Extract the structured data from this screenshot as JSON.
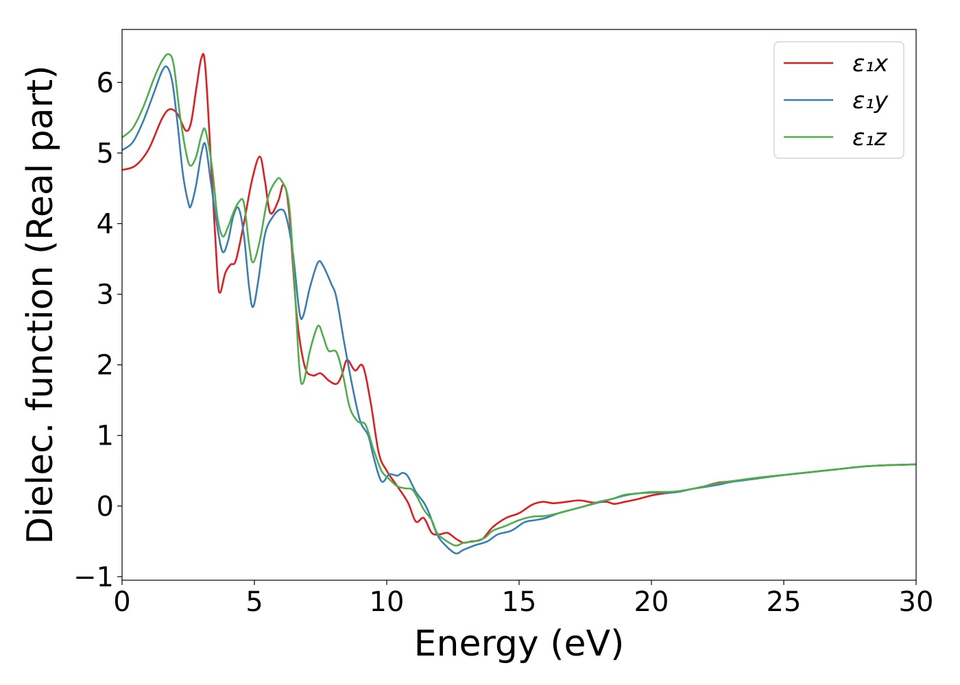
{
  "chart_data": {
    "type": "line",
    "xlabel": "Energy (eV)",
    "ylabel": "Dielec. function (Real part)",
    "xlim": [
      0,
      30
    ],
    "ylim": [
      -1.05,
      6.75
    ],
    "xticks": [
      0,
      5,
      10,
      15,
      20,
      25,
      30
    ],
    "yticks": [
      -1,
      0,
      1,
      2,
      3,
      4,
      5,
      6
    ],
    "ytick_labels": [
      "−1",
      "0",
      "1",
      "2",
      "3",
      "4",
      "5",
      "6"
    ],
    "grid": false,
    "legend_position": "top-right",
    "series": [
      {
        "name": "ε₁x",
        "color": "#e41a1c",
        "points": [
          [
            0,
            4.76
          ],
          [
            0.5,
            4.82
          ],
          [
            1.0,
            5.05
          ],
          [
            1.5,
            5.48
          ],
          [
            1.8,
            5.62
          ],
          [
            2.1,
            5.55
          ],
          [
            2.4,
            5.32
          ],
          [
            2.6,
            5.42
          ],
          [
            2.8,
            5.9
          ],
          [
            3.0,
            6.35
          ],
          [
            3.15,
            6.2
          ],
          [
            3.4,
            4.6
          ],
          [
            3.6,
            3.3
          ],
          [
            3.7,
            3.02
          ],
          [
            3.9,
            3.3
          ],
          [
            4.1,
            3.42
          ],
          [
            4.3,
            3.48
          ],
          [
            4.6,
            4.0
          ],
          [
            4.9,
            4.6
          ],
          [
            5.2,
            4.95
          ],
          [
            5.4,
            4.6
          ],
          [
            5.6,
            4.15
          ],
          [
            5.9,
            4.32
          ],
          [
            6.1,
            4.55
          ],
          [
            6.3,
            4.2
          ],
          [
            6.6,
            2.7
          ],
          [
            6.9,
            1.98
          ],
          [
            7.2,
            1.85
          ],
          [
            7.5,
            1.88
          ],
          [
            7.8,
            1.78
          ],
          [
            8.1,
            1.73
          ],
          [
            8.3,
            1.85
          ],
          [
            8.5,
            2.07
          ],
          [
            8.8,
            1.92
          ],
          [
            9.1,
            1.98
          ],
          [
            9.4,
            1.45
          ],
          [
            9.7,
            0.75
          ],
          [
            10.0,
            0.5
          ],
          [
            10.4,
            0.28
          ],
          [
            10.8,
            0.05
          ],
          [
            11.1,
            -0.22
          ],
          [
            11.4,
            -0.17
          ],
          [
            11.7,
            -0.38
          ],
          [
            12.0,
            -0.4
          ],
          [
            12.3,
            -0.38
          ],
          [
            12.6,
            -0.46
          ],
          [
            12.9,
            -0.52
          ],
          [
            13.2,
            -0.5
          ],
          [
            13.6,
            -0.47
          ],
          [
            14.0,
            -0.3
          ],
          [
            14.5,
            -0.17
          ],
          [
            15.0,
            -0.1
          ],
          [
            15.5,
            0.02
          ],
          [
            15.9,
            0.06
          ],
          [
            16.3,
            0.04
          ],
          [
            16.8,
            0.06
          ],
          [
            17.3,
            0.08
          ],
          [
            17.8,
            0.05
          ],
          [
            18.3,
            0.06
          ],
          [
            18.6,
            0.03
          ],
          [
            19.0,
            0.06
          ],
          [
            19.5,
            0.1
          ],
          [
            20.0,
            0.15
          ],
          [
            20.5,
            0.18
          ],
          [
            21.0,
            0.2
          ],
          [
            21.5,
            0.24
          ],
          [
            22.0,
            0.28
          ],
          [
            22.5,
            0.33
          ],
          [
            23.0,
            0.35
          ],
          [
            24.0,
            0.4
          ],
          [
            25.0,
            0.44
          ],
          [
            26.0,
            0.48
          ],
          [
            27.0,
            0.52
          ],
          [
            28.0,
            0.56
          ],
          [
            29.0,
            0.58
          ],
          [
            30.0,
            0.59
          ]
        ]
      },
      {
        "name": "ε₁y",
        "color": "#377eb8",
        "points": [
          [
            0,
            5.04
          ],
          [
            0.4,
            5.15
          ],
          [
            0.8,
            5.45
          ],
          [
            1.2,
            5.85
          ],
          [
            1.5,
            6.15
          ],
          [
            1.7,
            6.22
          ],
          [
            1.9,
            6.0
          ],
          [
            2.1,
            5.4
          ],
          [
            2.3,
            4.7
          ],
          [
            2.5,
            4.3
          ],
          [
            2.6,
            4.25
          ],
          [
            2.8,
            4.55
          ],
          [
            3.0,
            5.0
          ],
          [
            3.15,
            5.12
          ],
          [
            3.35,
            4.6
          ],
          [
            3.6,
            3.95
          ],
          [
            3.8,
            3.6
          ],
          [
            4.0,
            3.75
          ],
          [
            4.2,
            4.1
          ],
          [
            4.4,
            4.22
          ],
          [
            4.6,
            3.85
          ],
          [
            4.8,
            3.1
          ],
          [
            4.95,
            2.82
          ],
          [
            5.15,
            3.2
          ],
          [
            5.4,
            3.85
          ],
          [
            5.7,
            4.1
          ],
          [
            6.0,
            4.2
          ],
          [
            6.2,
            4.1
          ],
          [
            6.45,
            3.6
          ],
          [
            6.7,
            2.75
          ],
          [
            6.85,
            2.7
          ],
          [
            7.1,
            3.1
          ],
          [
            7.4,
            3.45
          ],
          [
            7.6,
            3.4
          ],
          [
            7.9,
            3.15
          ],
          [
            8.1,
            2.95
          ],
          [
            8.4,
            2.3
          ],
          [
            8.7,
            1.7
          ],
          [
            9.0,
            1.2
          ],
          [
            9.3,
            1.0
          ],
          [
            9.5,
            0.7
          ],
          [
            9.8,
            0.35
          ],
          [
            10.1,
            0.45
          ],
          [
            10.4,
            0.43
          ],
          [
            10.6,
            0.47
          ],
          [
            10.8,
            0.42
          ],
          [
            11.1,
            0.2
          ],
          [
            11.4,
            0.05
          ],
          [
            11.6,
            -0.1
          ],
          [
            11.9,
            -0.4
          ],
          [
            12.2,
            -0.55
          ],
          [
            12.6,
            -0.67
          ],
          [
            12.9,
            -0.62
          ],
          [
            13.3,
            -0.56
          ],
          [
            13.8,
            -0.5
          ],
          [
            14.2,
            -0.4
          ],
          [
            14.7,
            -0.35
          ],
          [
            15.2,
            -0.23
          ],
          [
            15.6,
            -0.2
          ],
          [
            16.0,
            -0.17
          ],
          [
            16.5,
            -0.1
          ],
          [
            17.0,
            -0.05
          ],
          [
            17.5,
            0.0
          ],
          [
            18.0,
            0.05
          ],
          [
            18.5,
            0.1
          ],
          [
            19.0,
            0.15
          ],
          [
            19.5,
            0.18
          ],
          [
            20.0,
            0.19
          ],
          [
            20.5,
            0.19
          ],
          [
            21.0,
            0.2
          ],
          [
            21.5,
            0.24
          ],
          [
            22.0,
            0.27
          ],
          [
            22.5,
            0.3
          ],
          [
            23.0,
            0.34
          ],
          [
            24.0,
            0.39
          ],
          [
            25.0,
            0.44
          ],
          [
            26.0,
            0.48
          ],
          [
            27.0,
            0.52
          ],
          [
            28.0,
            0.56
          ],
          [
            29.0,
            0.58
          ],
          [
            30.0,
            0.59
          ]
        ]
      },
      {
        "name": "ε₁z",
        "color": "#4daf4a",
        "points": [
          [
            0,
            5.22
          ],
          [
            0.4,
            5.35
          ],
          [
            0.8,
            5.65
          ],
          [
            1.2,
            6.05
          ],
          [
            1.5,
            6.3
          ],
          [
            1.75,
            6.4
          ],
          [
            1.95,
            6.25
          ],
          [
            2.2,
            5.5
          ],
          [
            2.45,
            4.95
          ],
          [
            2.6,
            4.82
          ],
          [
            2.8,
            4.95
          ],
          [
            3.0,
            5.25
          ],
          [
            3.15,
            5.32
          ],
          [
            3.4,
            4.8
          ],
          [
            3.6,
            4.1
          ],
          [
            3.8,
            3.82
          ],
          [
            4.0,
            3.95
          ],
          [
            4.2,
            4.15
          ],
          [
            4.4,
            4.3
          ],
          [
            4.6,
            4.3
          ],
          [
            4.8,
            3.7
          ],
          [
            4.95,
            3.45
          ],
          [
            5.2,
            3.75
          ],
          [
            5.5,
            4.35
          ],
          [
            5.8,
            4.6
          ],
          [
            6.0,
            4.62
          ],
          [
            6.3,
            4.3
          ],
          [
            6.5,
            3.25
          ],
          [
            6.7,
            1.95
          ],
          [
            6.85,
            1.75
          ],
          [
            7.1,
            2.2
          ],
          [
            7.4,
            2.55
          ],
          [
            7.6,
            2.4
          ],
          [
            7.8,
            2.2
          ],
          [
            8.1,
            2.18
          ],
          [
            8.35,
            1.85
          ],
          [
            8.6,
            1.4
          ],
          [
            8.9,
            1.2
          ],
          [
            9.2,
            1.15
          ],
          [
            9.5,
            0.8
          ],
          [
            9.8,
            0.5
          ],
          [
            10.1,
            0.38
          ],
          [
            10.4,
            0.28
          ],
          [
            10.7,
            0.25
          ],
          [
            11.0,
            0.22
          ],
          [
            11.4,
            -0.05
          ],
          [
            11.7,
            -0.2
          ],
          [
            11.9,
            -0.38
          ],
          [
            12.2,
            -0.48
          ],
          [
            12.6,
            -0.56
          ],
          [
            12.9,
            -0.52
          ],
          [
            13.3,
            -0.5
          ],
          [
            13.7,
            -0.45
          ],
          [
            14.0,
            -0.35
          ],
          [
            14.5,
            -0.28
          ],
          [
            15.0,
            -0.2
          ],
          [
            15.5,
            -0.15
          ],
          [
            16.0,
            -0.14
          ],
          [
            16.5,
            -0.1
          ],
          [
            17.0,
            -0.05
          ],
          [
            17.5,
            0.0
          ],
          [
            18.0,
            0.06
          ],
          [
            18.5,
            0.1
          ],
          [
            19.0,
            0.16
          ],
          [
            19.5,
            0.18
          ],
          [
            20.0,
            0.2
          ],
          [
            20.5,
            0.2
          ],
          [
            21.0,
            0.21
          ],
          [
            21.5,
            0.24
          ],
          [
            22.0,
            0.28
          ],
          [
            22.5,
            0.32
          ],
          [
            23.0,
            0.35
          ],
          [
            24.0,
            0.4
          ],
          [
            25.0,
            0.44
          ],
          [
            26.0,
            0.48
          ],
          [
            27.0,
            0.52
          ],
          [
            28.0,
            0.56
          ],
          [
            29.0,
            0.58
          ],
          [
            30.0,
            0.59
          ]
        ]
      }
    ]
  }
}
